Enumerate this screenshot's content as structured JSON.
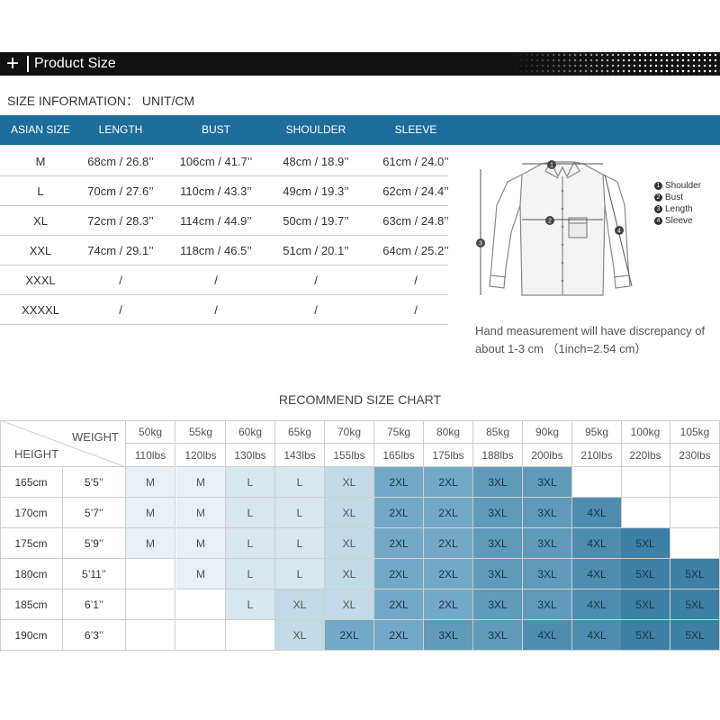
{
  "header": {
    "plus": "+",
    "title": "Product Size"
  },
  "size_info": {
    "title": "SIZE INFORMATION： UNIT/CM",
    "columns": [
      "ASIAN SIZE",
      "LENGTH",
      "BUST",
      "SHOULDER",
      "SLEEVE"
    ],
    "rows": [
      [
        "M",
        "68cm / 26.8’’",
        "106cm / 41.7’’",
        "48cm / 18.9’’",
        "61cm / 24.0’’"
      ],
      [
        "L",
        "70cm / 27.6’’",
        "110cm / 43.3’’",
        "49cm / 19.3’’",
        "62cm / 24.4’’"
      ],
      [
        "XL",
        "72cm / 28.3’’",
        "114cm / 44.9’’",
        "50cm / 19.7’’",
        "63cm / 24.8’’"
      ],
      [
        "XXL",
        "74cm / 29.1’’",
        "118cm / 46.5’’",
        "51cm / 20.1’’",
        "64cm / 25.2’’"
      ],
      [
        "XXXL",
        "/",
        "/",
        "/",
        "/"
      ],
      [
        "XXXXL",
        "/",
        "/",
        "/",
        "/"
      ]
    ]
  },
  "diagram": {
    "markers": [
      "1",
      "2",
      "3",
      "4"
    ],
    "notes": [
      {
        "num": "1",
        "label": "Shoulder"
      },
      {
        "num": "2",
        "label": "Bust"
      },
      {
        "num": "3",
        "label": "Length"
      },
      {
        "num": "4",
        "label": "Sleeve"
      }
    ],
    "disclaimer": "Hand measurement will have discrepancy of about 1-3 cm （1inch=2.54 cm）"
  },
  "recommend": {
    "title": "RECOMMEND SIZE CHART",
    "weight_label": "WEIGHT",
    "height_label": "HEIGHT",
    "weights_kg": [
      "50kg",
      "55kg",
      "60kg",
      "65kg",
      "70kg",
      "75kg",
      "80kg",
      "85kg",
      "90kg",
      "95kg",
      "100kg",
      "105kg"
    ],
    "weights_lbs": [
      "110lbs",
      "120lbs",
      "130lbs",
      "143lbs",
      "155lbs",
      "165lbs",
      "175lbs",
      "188lbs",
      "200lbs",
      "210lbs",
      "220lbs",
      "230lbs"
    ],
    "heights": [
      {
        "cm": "165cm",
        "ft": "5’5’’",
        "sizes": [
          "M",
          "M",
          "L",
          "L",
          "XL",
          "2XL",
          "2XL",
          "3XL",
          "3XL",
          "",
          "",
          ""
        ]
      },
      {
        "cm": "170cm",
        "ft": "5’7’’",
        "sizes": [
          "M",
          "M",
          "L",
          "L",
          "XL",
          "2XL",
          "2XL",
          "3XL",
          "3XL",
          "4XL",
          "",
          ""
        ]
      },
      {
        "cm": "175cm",
        "ft": "5’9’’",
        "sizes": [
          "M",
          "M",
          "L",
          "L",
          "XL",
          "2XL",
          "2XL",
          "3XL",
          "3XL",
          "4XL",
          "5XL",
          ""
        ]
      },
      {
        "cm": "180cm",
        "ft": "5’11’’",
        "sizes": [
          "",
          "M",
          "L",
          "L",
          "XL",
          "2XL",
          "2XL",
          "3XL",
          "3XL",
          "4XL",
          "5XL",
          "5XL"
        ]
      },
      {
        "cm": "185cm",
        "ft": "6’1’’",
        "sizes": [
          "",
          "",
          "L",
          "XL",
          "XL",
          "2XL",
          "2XL",
          "3XL",
          "3XL",
          "4XL",
          "5XL",
          "5XL"
        ]
      },
      {
        "cm": "190cm",
        "ft": "6’3’’",
        "sizes": [
          "",
          "",
          "",
          "XL",
          "2XL",
          "2XL",
          "3XL",
          "3XL",
          "4XL",
          "4XL",
          "5XL",
          "5XL"
        ]
      }
    ],
    "size_colors": {
      "M": "#e6f0f6",
      "L": "#d7e6ef",
      "XL": "#c2d9e6",
      "2XL": "#73a9c6",
      "3XL": "#5f9ab9",
      "4XL": "#4f8db0",
      "5XL": "#3e7fa5"
    }
  },
  "colors": {
    "header_bar": "#111111",
    "table_head": "#1d6d9b"
  }
}
